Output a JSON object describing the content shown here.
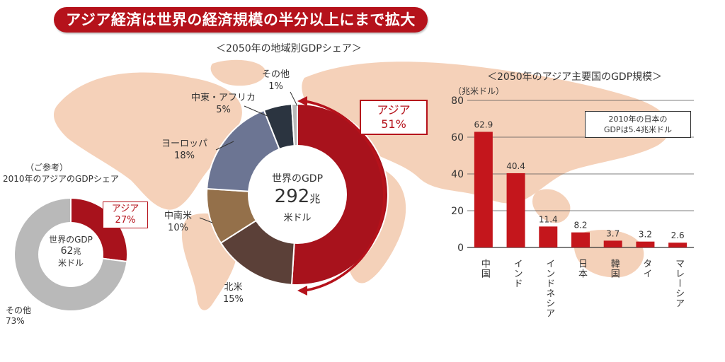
{
  "banner": "アジア経済は世界の経済規模の半分以上にまで拡大",
  "colors": {
    "asia": "#a8121c",
    "north_america": "#5b4038",
    "latin_america": "#94704a",
    "europe": "#6c7593",
    "mideast_africa": "#2b3440",
    "others": "#b9b9b9",
    "bar": "#c4161c",
    "map": "#f3c9ad"
  },
  "chart_data": [
    {
      "type": "pie",
      "title": "＜2050年の地域別GDPシェア＞",
      "center": {
        "line1": "世界のGDP",
        "value": "292",
        "unit": "兆",
        "line3": "米ドル"
      },
      "slices": [
        {
          "name": "アジア",
          "value": 51,
          "label": "51%"
        },
        {
          "name": "北米",
          "value": 15,
          "label": "15%"
        },
        {
          "name": "中南米",
          "value": 10,
          "label": "10%"
        },
        {
          "name": "ヨーロッパ",
          "value": 18,
          "label": "18%"
        },
        {
          "name": "中東・アフリカ",
          "value": 5,
          "label": "5%"
        },
        {
          "name": "その他",
          "value": 1,
          "label": "1%"
        }
      ]
    },
    {
      "type": "pie",
      "title_note": "（ご参考）",
      "title": "2010年のアジアのGDPシェア",
      "center": {
        "line1": "世界のGDP",
        "value": "62",
        "unit": "兆",
        "line3": "米ドル"
      },
      "slices": [
        {
          "name": "アジア",
          "value": 27,
          "label": "27%"
        },
        {
          "name": "その他",
          "value": 73,
          "label": "73%"
        }
      ]
    },
    {
      "type": "bar",
      "title": "＜2050年のアジア主要国のGDP規模＞",
      "ylabel": "（兆米ドル）",
      "ylim": [
        0,
        80
      ],
      "yticks": [
        "0",
        "20",
        "40",
        "60",
        "80"
      ],
      "categories": [
        "中国",
        "インド",
        "インドネシア",
        "日本",
        "韓国",
        "タイ",
        "マレーシア"
      ],
      "values": [
        62.9,
        40.4,
        11.4,
        8.2,
        3.7,
        3.2,
        2.6
      ],
      "value_labels": [
        "62.9",
        "40.4",
        "11.4",
        "8.2",
        "3.7",
        "3.2",
        "2.6"
      ],
      "note": {
        "line1": "2010年の日本の",
        "line2": "GDPは5.4兆米ドル"
      }
    }
  ]
}
